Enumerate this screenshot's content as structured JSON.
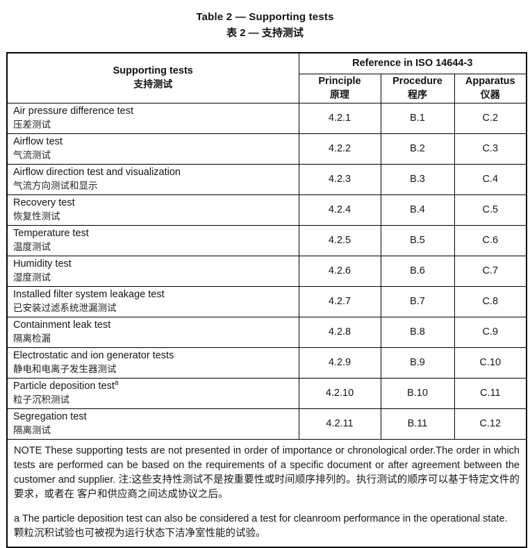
{
  "page": {
    "title_en": "Table 2 — Supporting tests",
    "title_zh": "表 2 — 支持测试"
  },
  "colors": {
    "background": "#ffffff",
    "border": "#000000",
    "text": "#111111"
  },
  "table": {
    "header": {
      "supporting_tests_en": "Supporting tests",
      "supporting_tests_zh": "支持测试",
      "reference_group": "Reference in ISO 14644-3",
      "subcolumns": [
        {
          "en": "Principle",
          "zh": "原理"
        },
        {
          "en": "Procedure",
          "zh": "程序"
        },
        {
          "en": "Apparatus",
          "zh": "仪器"
        }
      ]
    },
    "rows": [
      {
        "test_en": "Air pressure difference test",
        "test_zh": "压差测试",
        "principle": "4.2.1",
        "procedure": "B.1",
        "apparatus": "C.2"
      },
      {
        "test_en": "Airflow test",
        "test_zh": "气流测试",
        "principle": "4.2.2",
        "procedure": "B.2",
        "apparatus": "C.3"
      },
      {
        "test_en": "Airflow direction test and visualization",
        "test_zh": "气流方向测试和显示",
        "principle": "4.2.3",
        "procedure": "B.3",
        "apparatus": "C.4"
      },
      {
        "test_en": "Recovery test",
        "test_zh": "恢复性测试",
        "principle": "4.2.4",
        "procedure": "B.4",
        "apparatus": "C.5"
      },
      {
        "test_en": "Temperature test",
        "test_zh": "温度测试",
        "principle": "4.2.5",
        "procedure": "B.5",
        "apparatus": "C.6"
      },
      {
        "test_en": "Humidity test",
        "test_zh": "湿度测试",
        "principle": "4.2.6",
        "procedure": "B.6",
        "apparatus": "C.7"
      },
      {
        "test_en": "Installed filter system leakage test",
        "test_zh": "已安装过滤系统泄漏测试",
        "principle": "4.2.7",
        "procedure": "B.7",
        "apparatus": "C.8"
      },
      {
        "test_en": "Containment leak test",
        "test_zh": "隔离检漏",
        "principle": "4.2.8",
        "procedure": "B.8",
        "apparatus": "C.9"
      },
      {
        "test_en": "Electrostatic and ion generator tests",
        "test_zh": "静电和电离子发生器测试",
        "principle": "4.2.9",
        "procedure": "B.9",
        "apparatus": "C.10"
      },
      {
        "test_en": "Particle deposition test",
        "footnote_marker": "a",
        "test_zh": "粒子沉积测试",
        "principle": "4.2.10",
        "procedure": "B.10",
        "apparatus": "C.11"
      },
      {
        "test_en": "Segregation test",
        "test_zh": "隔离测试",
        "principle": "4.2.11",
        "procedure": "B.11",
        "apparatus": "C.12"
      }
    ],
    "note_en": "NOTE These supporting tests are not presented in order of importance or chronological order.The order in which tests are performed can be based on the requirements of a specific document or after agreement between the customer and supplier.",
    "note_zh": "注:这些支持性测试不是按重要性或时间顺序排列的。执行测试的顺序可以基于特定文件的要求，或者在 客户和供应商之间达成协议之后。",
    "footnote_en": "a The particle deposition test can also be considered a test for cleanroom performance in the operational state.",
    "footnote_zh": "颗粒沉积试验也可被视为运行状态下洁净室性能的试验。"
  }
}
